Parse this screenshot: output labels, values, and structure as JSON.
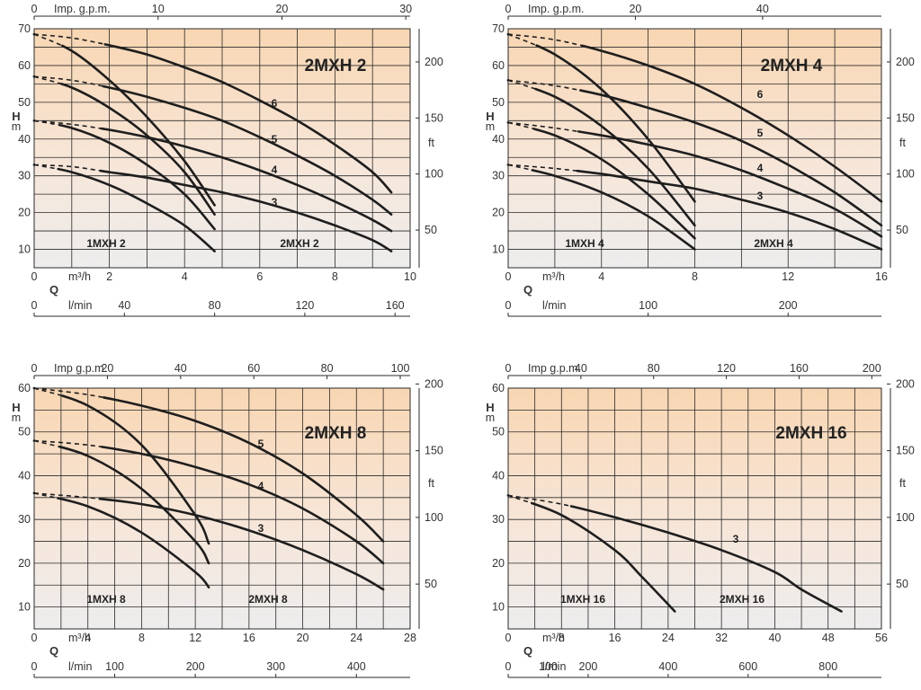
{
  "chart_data": [
    {
      "type": "line",
      "title": "2MXH 2",
      "ylabel_H": "H",
      "ylabel_m": "m",
      "ylabel_ft": "ft",
      "q_label": "Q",
      "top_axis": {
        "label": "Imp. g.p.m.",
        "ticks": [
          "0",
          "10",
          "20",
          "30"
        ]
      },
      "bottom_axis_m3h": {
        "label": "m³/h",
        "ticks": [
          "0",
          "2",
          "4",
          "6",
          "8",
          "10"
        ]
      },
      "bottom_axis_lmin": {
        "label": "l/min",
        "ticks": [
          "0",
          "40",
          "80",
          "120",
          "160"
        ]
      },
      "left_ticks": [
        "10",
        "20",
        "30",
        "40",
        "50",
        "60",
        "70"
      ],
      "right_ticks": [
        "50",
        "100",
        "150",
        "200"
      ],
      "xlim": [
        0,
        10
      ],
      "ylim": [
        5,
        70
      ],
      "region_labels": [
        "1MXH 2",
        "2MXH 2"
      ],
      "series": [
        {
          "name": "3",
          "points": [
            [
              0,
              33
            ],
            [
              1,
              32.5
            ],
            [
              2,
              31
            ],
            [
              3,
              29.5
            ],
            [
              4,
              27.5
            ],
            [
              5,
              25.5
            ],
            [
              6,
              23
            ],
            [
              7,
              20
            ],
            [
              8,
              16.5
            ],
            [
              9,
              12.5
            ],
            [
              9.5,
              9.5
            ]
          ]
        },
        {
          "name": "4",
          "points": [
            [
              0,
              45
            ],
            [
              1,
              44
            ],
            [
              2,
              42.5
            ],
            [
              3,
              40.5
            ],
            [
              4,
              38
            ],
            [
              5,
              35
            ],
            [
              6,
              31.5
            ],
            [
              7,
              27.5
            ],
            [
              8,
              23
            ],
            [
              9,
              18
            ],
            [
              9.5,
              15
            ]
          ]
        },
        {
          "name": "5",
          "points": [
            [
              0,
              57
            ],
            [
              1,
              56
            ],
            [
              2,
              54
            ],
            [
              3,
              51.5
            ],
            [
              4,
              48.5
            ],
            [
              5,
              45
            ],
            [
              6,
              40.5
            ],
            [
              7,
              35.5
            ],
            [
              8,
              30
            ],
            [
              9,
              23.5
            ],
            [
              9.5,
              19.5
            ]
          ]
        },
        {
          "name": "6",
          "points": [
            [
              0,
              68.5
            ],
            [
              1,
              67.5
            ],
            [
              2,
              65.5
            ],
            [
              3,
              63
            ],
            [
              4,
              59.5
            ],
            [
              5,
              55.5
            ],
            [
              6,
              50.5
            ],
            [
              7,
              45
            ],
            [
              8,
              38.5
            ],
            [
              9,
              31
            ],
            [
              9.5,
              25.5
            ]
          ]
        },
        {
          "name": "1MXH 2 (3)",
          "points": [
            [
              0,
              33
            ],
            [
              1,
              31
            ],
            [
              2,
              27.5
            ],
            [
              3,
              22.5
            ],
            [
              4,
              16.5
            ],
            [
              4.8,
              9.5
            ]
          ]
        },
        {
          "name": "1MXH 2 (4)",
          "points": [
            [
              0,
              45
            ],
            [
              1,
              43
            ],
            [
              2,
              39
            ],
            [
              3,
              33
            ],
            [
              4,
              25
            ],
            [
              4.8,
              15.5
            ]
          ]
        },
        {
          "name": "1MXH 2 (5)",
          "points": [
            [
              0,
              57
            ],
            [
              1,
              54
            ],
            [
              2,
              48.5
            ],
            [
              3,
              41
            ],
            [
              4,
              31
            ],
            [
              4.8,
              19.5
            ]
          ]
        },
        {
          "name": "1MXH 2 (6)",
          "points": [
            [
              0,
              68.5
            ],
            [
              1,
              64
            ],
            [
              2,
              56
            ],
            [
              3,
              46
            ],
            [
              4,
              34
            ],
            [
              4.8,
              22
            ]
          ]
        }
      ]
    },
    {
      "type": "line",
      "title": "2MXH 4",
      "ylabel_H": "H",
      "ylabel_m": "m",
      "ylabel_ft": "ft",
      "q_label": "Q",
      "top_axis": {
        "label": "Imp. g.p.m.",
        "ticks": [
          "0",
          "20",
          "40"
        ]
      },
      "bottom_axis_m3h": {
        "label": "m³/h",
        "ticks": [
          "0",
          "4",
          "8",
          "12",
          "16"
        ]
      },
      "bottom_axis_lmin": {
        "label": "l/min",
        "ticks": [
          "0",
          "100",
          "200"
        ]
      },
      "left_ticks": [
        "10",
        "20",
        "30",
        "40",
        "50",
        "60",
        "70"
      ],
      "right_ticks": [
        "50",
        "100",
        "150",
        "200"
      ],
      "xlim": [
        0,
        16
      ],
      "ylim": [
        5,
        70
      ],
      "region_labels": [
        "1MXH 4",
        "2MXH 4"
      ],
      "series": [
        {
          "name": "3",
          "points": [
            [
              0,
              33
            ],
            [
              2,
              32
            ],
            [
              4,
              30.5
            ],
            [
              6,
              28.5
            ],
            [
              8,
              26.5
            ],
            [
              10,
              23.5
            ],
            [
              12,
              20
            ],
            [
              14,
              15.5
            ],
            [
              16,
              10
            ]
          ]
        },
        {
          "name": "4",
          "points": [
            [
              0,
              44.5
            ],
            [
              2,
              43
            ],
            [
              4,
              41
            ],
            [
              6,
              38.5
            ],
            [
              8,
              35.5
            ],
            [
              10,
              31.5
            ],
            [
              12,
              26.5
            ],
            [
              14,
              21
            ],
            [
              16,
              13.5
            ]
          ]
        },
        {
          "name": "5",
          "points": [
            [
              0,
              56
            ],
            [
              2,
              54.5
            ],
            [
              4,
              52
            ],
            [
              6,
              48.5
            ],
            [
              8,
              44.5
            ],
            [
              10,
              39.5
            ],
            [
              12,
              33
            ],
            [
              14,
              25.5
            ],
            [
              16,
              16.5
            ]
          ]
        },
        {
          "name": "6",
          "points": [
            [
              0,
              68.5
            ],
            [
              2,
              67
            ],
            [
              4,
              64
            ],
            [
              6,
              60
            ],
            [
              8,
              55
            ],
            [
              10,
              48.5
            ],
            [
              12,
              41
            ],
            [
              14,
              32.5
            ],
            [
              16,
              23
            ]
          ]
        },
        {
          "name": "1MXH 4 (3)",
          "points": [
            [
              0,
              33
            ],
            [
              2,
              30
            ],
            [
              4,
              25.5
            ],
            [
              6,
              19
            ],
            [
              8,
              10
            ]
          ]
        },
        {
          "name": "1MXH 4 (4)",
          "points": [
            [
              0,
              44.5
            ],
            [
              2,
              41
            ],
            [
              4,
              34.5
            ],
            [
              6,
              25
            ],
            [
              8,
              13
            ]
          ]
        },
        {
          "name": "1MXH 4 (5)",
          "points": [
            [
              0,
              56
            ],
            [
              2,
              51.5
            ],
            [
              4,
              43.5
            ],
            [
              6,
              32
            ],
            [
              8,
              16.5
            ]
          ]
        },
        {
          "name": "1MXH 4 (6)",
          "points": [
            [
              0,
              68.5
            ],
            [
              2,
              63
            ],
            [
              4,
              53.5
            ],
            [
              6,
              40
            ],
            [
              8,
              23
            ]
          ]
        }
      ]
    },
    {
      "type": "line",
      "title": "2MXH 8",
      "ylabel_H": "H",
      "ylabel_m": "m",
      "ylabel_ft": "ft",
      "q_label": "Q",
      "top_axis": {
        "label": "Imp g.p.m.",
        "ticks": [
          "0",
          "20",
          "40",
          "60",
          "80",
          "100"
        ]
      },
      "bottom_axis_m3h": {
        "label": "m³/h",
        "ticks": [
          "0",
          "4",
          "8",
          "12",
          "16",
          "20",
          "24",
          "28"
        ]
      },
      "bottom_axis_lmin": {
        "label": "l/min",
        "ticks": [
          "0",
          "100",
          "200",
          "300",
          "400"
        ]
      },
      "left_ticks": [
        "10",
        "20",
        "30",
        "40",
        "50",
        "60"
      ],
      "right_ticks": [
        "50",
        "100",
        "150",
        "200"
      ],
      "xlim": [
        0,
        28
      ],
      "ylim": [
        5,
        60
      ],
      "region_labels": [
        "1MXH 8",
        "2MXH 8"
      ],
      "series": [
        {
          "name": "3",
          "points": [
            [
              0,
              36
            ],
            [
              4,
              35
            ],
            [
              8,
              33.5
            ],
            [
              12,
              31
            ],
            [
              16,
              27.5
            ],
            [
              20,
              23
            ],
            [
              24,
              17.5
            ],
            [
              26,
              14
            ]
          ]
        },
        {
          "name": "4",
          "points": [
            [
              0,
              48
            ],
            [
              4,
              47
            ],
            [
              8,
              45
            ],
            [
              12,
              42
            ],
            [
              16,
              38
            ],
            [
              20,
              32.5
            ],
            [
              24,
              25
            ],
            [
              26,
              20
            ]
          ]
        },
        {
          "name": "5",
          "points": [
            [
              0,
              60
            ],
            [
              4,
              58.5
            ],
            [
              8,
              56
            ],
            [
              12,
              52.5
            ],
            [
              16,
              47.5
            ],
            [
              20,
              40.5
            ],
            [
              24,
              31
            ],
            [
              26,
              25
            ]
          ]
        },
        {
          "name": "1MXH 8 (3)",
          "points": [
            [
              0,
              36
            ],
            [
              4,
              33
            ],
            [
              8,
              27
            ],
            [
              12,
              18
            ],
            [
              13,
              14.5
            ]
          ]
        },
        {
          "name": "1MXH 8 (4)",
          "points": [
            [
              0,
              48
            ],
            [
              4,
              44.5
            ],
            [
              8,
              37
            ],
            [
              12,
              25
            ],
            [
              13,
              20
            ]
          ]
        },
        {
          "name": "1MXH 8 (5)",
          "points": [
            [
              0,
              60
            ],
            [
              4,
              56
            ],
            [
              8,
              47
            ],
            [
              12,
              31
            ],
            [
              13,
              24.5
            ]
          ]
        }
      ]
    },
    {
      "type": "line",
      "title": "2MXH 16",
      "ylabel_H": "H",
      "ylabel_m": "m",
      "ylabel_ft": "ft",
      "q_label": "Q",
      "top_axis": {
        "label": "Imp g.p.m.",
        "ticks": [
          "0",
          "40",
          "80",
          "120",
          "160",
          "200"
        ]
      },
      "bottom_axis_m3h": {
        "label": "m³/h",
        "ticks": [
          "0",
          "8",
          "16",
          "24",
          "32",
          "40",
          "48",
          "56"
        ]
      },
      "bottom_axis_lmin": {
        "label": "l/min",
        "ticks": [
          "0",
          "100",
          "200",
          "400",
          "600",
          "800"
        ]
      },
      "left_ticks": [
        "10",
        "20",
        "30",
        "40",
        "50",
        "60"
      ],
      "right_ticks": [
        "50",
        "100",
        "150",
        "200"
      ],
      "xlim": [
        0,
        56
      ],
      "ylim": [
        5,
        60
      ],
      "region_labels": [
        "1MXH 16",
        "2MXH 16"
      ],
      "series": [
        {
          "name": "3",
          "points": [
            [
              0,
              35.5
            ],
            [
              8,
              33.5
            ],
            [
              16,
              30.5
            ],
            [
              24,
              27
            ],
            [
              32,
              23
            ],
            [
              40,
              18
            ],
            [
              44,
              14
            ],
            [
              50,
              9
            ]
          ]
        },
        {
          "name": "1MXH 16",
          "points": [
            [
              0,
              35.5
            ],
            [
              8,
              31
            ],
            [
              16,
              23
            ],
            [
              20,
              17
            ],
            [
              25,
              9
            ]
          ]
        }
      ]
    }
  ]
}
